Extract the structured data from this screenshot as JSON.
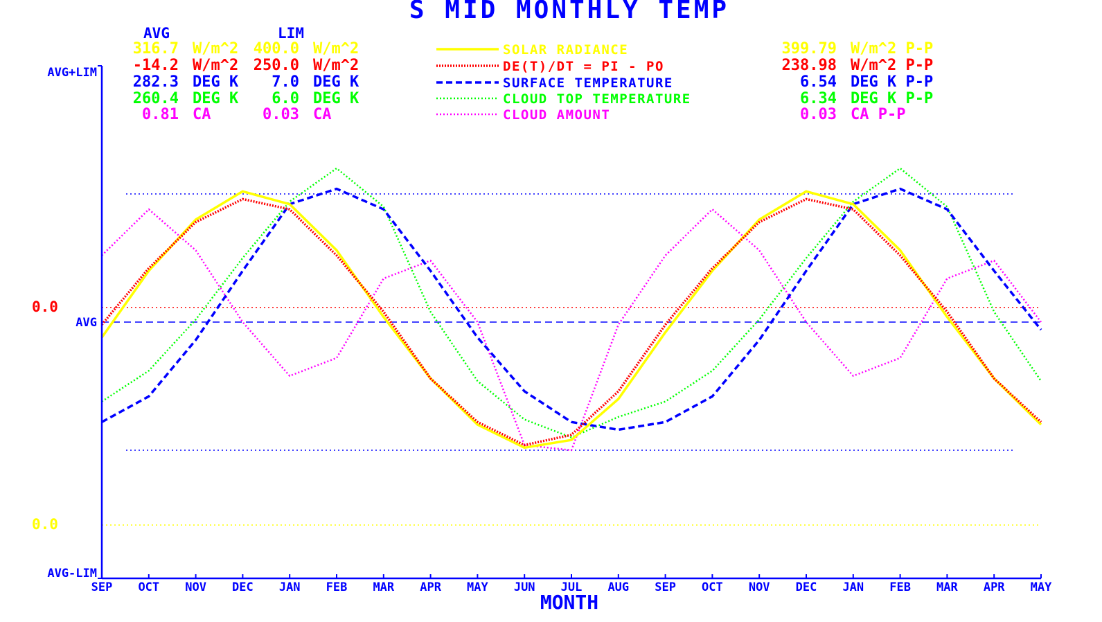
{
  "chart_data": {
    "type": "line",
    "title": "S MID MONTHLY TEMP",
    "xlabel": "MONTH",
    "categories": [
      "SEP",
      "OCT",
      "NOV",
      "DEC",
      "JAN",
      "FEB",
      "MAR",
      "APR",
      "MAY",
      "JUN",
      "JUL",
      "AUG",
      "SEP",
      "OCT",
      "NOV",
      "DEC",
      "JAN",
      "FEB",
      "MAR",
      "APR",
      "MAY"
    ],
    "y_axis_labels": {
      "top": "AVG+LIM",
      "middle": "AVG",
      "bottom": "AVG-LIM",
      "red_zero": "0.0",
      "yellow_zero": "0.0"
    },
    "ylim": [
      -1,
      1
    ],
    "y_units": "normalized: (value - AVG) / LIM",
    "header": {
      "avg": "AVG",
      "lim": "LIM"
    },
    "stats": [
      {
        "avg": "316.7",
        "avg_unit": "W/m^2",
        "lim": "400.0",
        "lim_unit": "W/m^2",
        "pp": "399.79",
        "pp_unit": "W/m^2 P-P"
      },
      {
        "avg": "-14.2",
        "avg_unit": "W/m^2",
        "lim": "250.0",
        "lim_unit": "W/m^2",
        "pp": "238.98",
        "pp_unit": "W/m^2 P-P"
      },
      {
        "avg": "282.3",
        "avg_unit": "DEG K",
        "lim": "7.0",
        "lim_unit": "DEG K",
        "pp": "6.54",
        "pp_unit": "DEG K P-P"
      },
      {
        "avg": "260.4",
        "avg_unit": "DEG K",
        "lim": "6.0",
        "lim_unit": "DEG K",
        "pp": "6.34",
        "pp_unit": "DEG K P-P"
      },
      {
        "avg": "0.81",
        "avg_unit": "CA",
        "lim": "0.03",
        "lim_unit": "CA",
        "pp": "0.03",
        "pp_unit": "CA P-P"
      }
    ],
    "reference_lines": {
      "upper": 0.5,
      "lower": -0.5,
      "red_zero": 0.057,
      "yellow_zero": -0.792
    },
    "series": [
      {
        "name": "Solar Radiance",
        "color": "#ffff00",
        "style": "solid",
        "values": [
          -0.06,
          0.2,
          0.4,
          0.51,
          0.46,
          0.28,
          0.02,
          -0.22,
          -0.4,
          -0.49,
          -0.46,
          -0.3,
          -0.04,
          0.2,
          0.4,
          0.51,
          0.46,
          0.28,
          0.02,
          -0.22,
          -0.4
        ]
      },
      {
        "name": "DE(T)/DT = PI - PO",
        "color": "#ff0000",
        "style": "dotted-dense",
        "values": [
          -0.01,
          0.21,
          0.39,
          0.48,
          0.44,
          0.26,
          0.04,
          -0.22,
          -0.39,
          -0.48,
          -0.44,
          -0.27,
          -0.01,
          0.21,
          0.39,
          0.48,
          0.44,
          0.26,
          0.04,
          -0.22,
          -0.39
        ]
      },
      {
        "name": "Surface Temperature",
        "color": "#0000ff",
        "style": "dashed",
        "values": [
          -0.39,
          -0.29,
          -0.07,
          0.2,
          0.46,
          0.52,
          0.44,
          0.2,
          -0.06,
          -0.27,
          -0.39,
          -0.42,
          -0.39,
          -0.29,
          -0.07,
          0.2,
          0.46,
          0.52,
          0.44,
          0.2,
          -0.03
        ]
      },
      {
        "name": "Cloud Top Temperature",
        "color": "#00ff00",
        "style": "dotted",
        "values": [
          -0.31,
          -0.19,
          0.01,
          0.25,
          0.47,
          0.6,
          0.45,
          0.04,
          -0.23,
          -0.38,
          -0.45,
          -0.37,
          -0.31,
          -0.19,
          0.01,
          0.25,
          0.47,
          0.6,
          0.45,
          0.04,
          -0.23
        ]
      },
      {
        "name": "Cloud Amount",
        "color": "#ff00ff",
        "style": "dotted",
        "values": [
          0.26,
          0.44,
          0.28,
          0.0,
          -0.21,
          -0.14,
          0.17,
          0.24,
          0.0,
          -0.48,
          -0.5,
          -0.01,
          0.26,
          0.44,
          0.28,
          0.0,
          -0.21,
          -0.14,
          0.17,
          0.24,
          0.0
        ]
      }
    ]
  },
  "colors": {
    "axis": "#0000ff",
    "background": "#ffffff"
  },
  "legend_labels": [
    "SOLAR RADIANCE",
    "DE(T)/DT = PI - PO",
    "SURFACE TEMPERATURE",
    "CLOUD TOP TEMPERATURE",
    "CLOUD AMOUNT"
  ]
}
